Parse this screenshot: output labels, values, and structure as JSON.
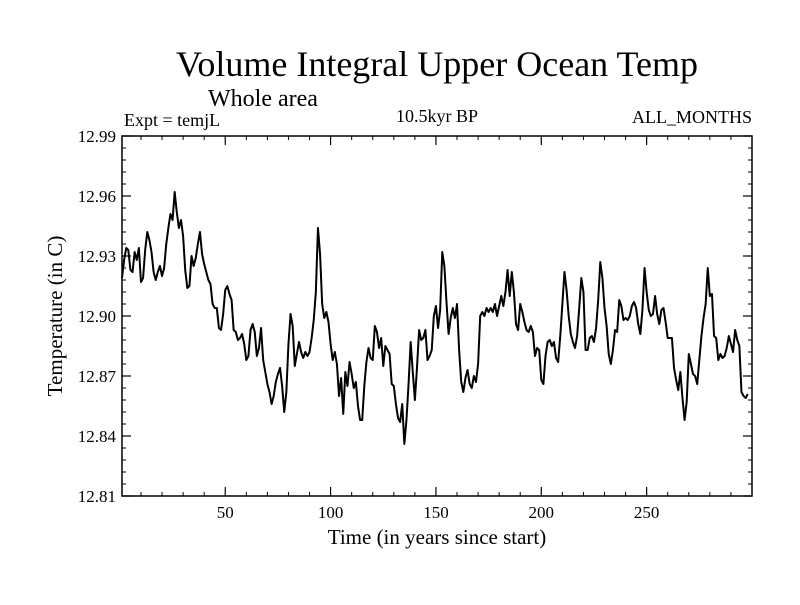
{
  "chart_data": {
    "type": "line",
    "title": "Volume Integral Upper Ocean Temp",
    "subtitle": "Whole area",
    "left_label": "Expt = temjL",
    "center_label": "10.5kyr BP",
    "right_label": "ALL_MONTHS",
    "xlabel": "Time (in years since start)",
    "ylabel": "Temperature (in C)",
    "xlim": [
      1,
      300
    ],
    "ylim": [
      12.81,
      12.99
    ],
    "x_ticks": [
      50,
      100,
      150,
      200,
      250
    ],
    "x_tick_labels": [
      "50",
      "100",
      "150",
      "200",
      "250"
    ],
    "y_ticks": [
      12.81,
      12.84,
      12.87,
      12.9,
      12.93,
      12.96,
      12.99
    ],
    "y_tick_labels": [
      "12.81",
      "12.84",
      "12.87",
      "12.90",
      "12.93",
      "12.96",
      "12.99"
    ],
    "series": [
      {
        "name": "temperature",
        "x_start": 1,
        "x_step": 1,
        "values": [
          12.919,
          12.928,
          12.934,
          12.933,
          12.923,
          12.922,
          12.932,
          12.928,
          12.934,
          12.917,
          12.919,
          12.933,
          12.942,
          12.938,
          12.932,
          12.922,
          12.918,
          12.922,
          12.925,
          12.92,
          12.924,
          12.936,
          12.944,
          12.951,
          12.948,
          12.962,
          12.952,
          12.944,
          12.948,
          12.94,
          12.923,
          12.914,
          12.915,
          12.93,
          12.925,
          12.929,
          12.936,
          12.942,
          12.931,
          12.926,
          12.922,
          12.918,
          12.916,
          12.906,
          12.904,
          12.904,
          12.894,
          12.893,
          12.901,
          12.913,
          12.915,
          12.911,
          12.908,
          12.893,
          12.892,
          12.888,
          12.889,
          12.891,
          12.886,
          12.878,
          12.88,
          12.893,
          12.896,
          12.892,
          12.88,
          12.884,
          12.894,
          12.878,
          12.872,
          12.866,
          12.862,
          12.856,
          12.86,
          12.867,
          12.871,
          12.874,
          12.865,
          12.852,
          12.862,
          12.886,
          12.901,
          12.895,
          12.875,
          12.881,
          12.887,
          12.882,
          12.879,
          12.882,
          12.88,
          12.882,
          12.889,
          12.898,
          12.912,
          12.944,
          12.931,
          12.906,
          12.899,
          12.902,
          12.897,
          12.886,
          12.878,
          12.882,
          12.876,
          12.86,
          12.869,
          12.851,
          12.872,
          12.865,
          12.877,
          12.871,
          12.864,
          12.867,
          12.855,
          12.848,
          12.848,
          12.865,
          12.877,
          12.884,
          12.879,
          12.878,
          12.895,
          12.892,
          12.884,
          12.889,
          12.875,
          12.885,
          12.883,
          12.881,
          12.866,
          12.865,
          12.856,
          12.849,
          12.847,
          12.856,
          12.836,
          12.848,
          12.866,
          12.887,
          12.872,
          12.858,
          12.874,
          12.893,
          12.888,
          12.889,
          12.893,
          12.878,
          12.88,
          12.883,
          12.9,
          12.905,
          12.894,
          12.903,
          12.932,
          12.925,
          12.907,
          12.891,
          12.899,
          12.904,
          12.899,
          12.906,
          12.883,
          12.867,
          12.862,
          12.869,
          12.873,
          12.866,
          12.864,
          12.87,
          12.867,
          12.876,
          12.9,
          12.902,
          12.9,
          12.904,
          12.902,
          12.904,
          12.902,
          12.906,
          12.9,
          12.905,
          12.91,
          12.905,
          12.912,
          12.923,
          12.91,
          12.922,
          12.912,
          12.896,
          12.893,
          12.906,
          12.902,
          12.897,
          12.893,
          12.892,
          12.895,
          12.892,
          12.88,
          12.884,
          12.883,
          12.868,
          12.866,
          12.88,
          12.887,
          12.888,
          12.885,
          12.887,
          12.879,
          12.877,
          12.89,
          12.906,
          12.922,
          12.913,
          12.9,
          12.891,
          12.887,
          12.884,
          12.89,
          12.904,
          12.919,
          12.912,
          12.883,
          12.883,
          12.889,
          12.89,
          12.887,
          12.894,
          12.908,
          12.927,
          12.919,
          12.904,
          12.895,
          12.881,
          12.876,
          12.883,
          12.893,
          12.892,
          12.908,
          12.905,
          12.898,
          12.899,
          12.898,
          12.9,
          12.905,
          12.907,
          12.904,
          12.896,
          12.891,
          12.903,
          12.924,
          12.912,
          12.903,
          12.9,
          12.901,
          12.91,
          12.901,
          12.896,
          12.903,
          12.904,
          12.897,
          12.889,
          12.889,
          12.889,
          12.874,
          12.868,
          12.863,
          12.872,
          12.859,
          12.848,
          12.857,
          12.881,
          12.876,
          12.871,
          12.87,
          12.866,
          12.878,
          12.89,
          12.899,
          12.906,
          12.924,
          12.91,
          12.911,
          12.89,
          12.889,
          12.878,
          12.881,
          12.879,
          12.88,
          12.884,
          12.89,
          12.886,
          12.882,
          12.893,
          12.888,
          12.885,
          12.862,
          12.86,
          12.859,
          12.861
        ]
      }
    ]
  }
}
